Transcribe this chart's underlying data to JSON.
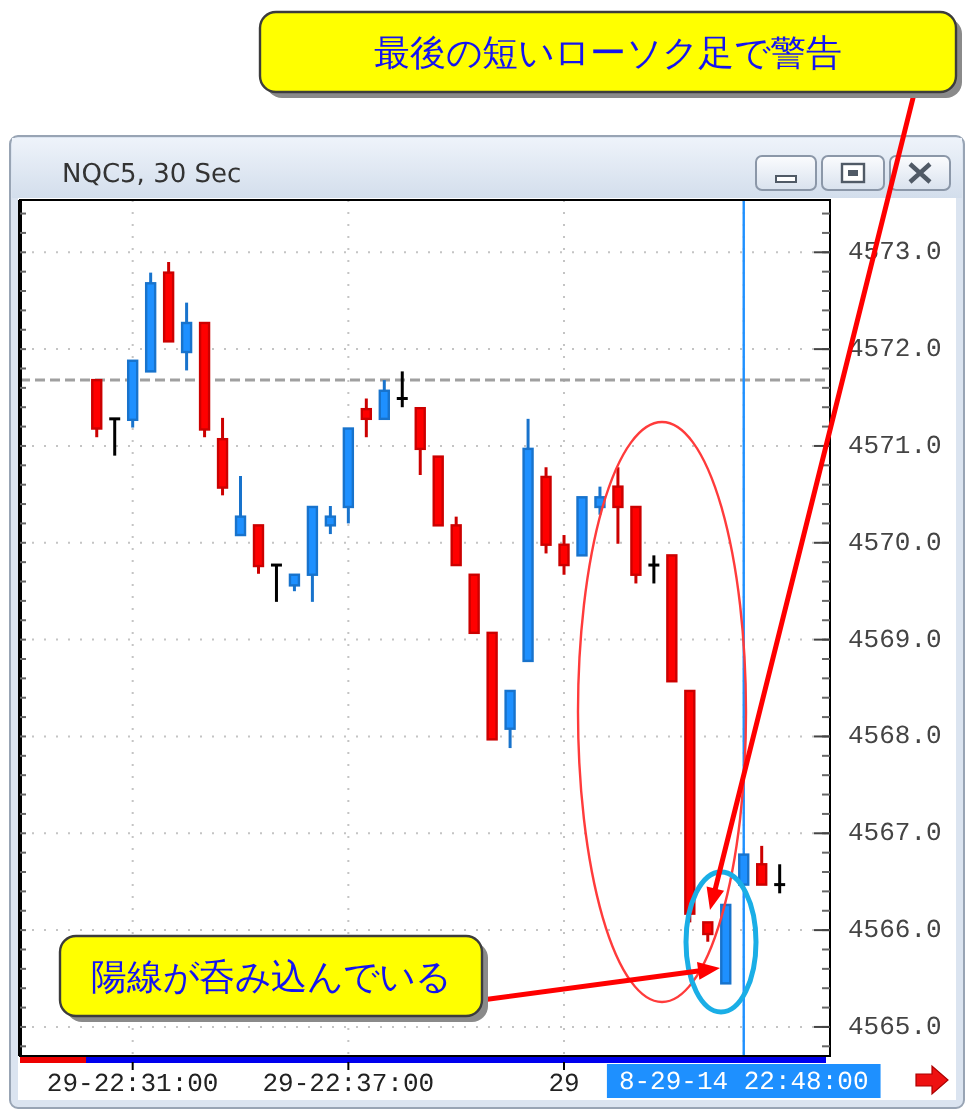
{
  "chart_data": {
    "type": "candlestick",
    "title": "NQC5, 30 Sec",
    "categories": [
      null,
      null,
      "29-22:31:00",
      null,
      null,
      null,
      null,
      null,
      null,
      null,
      null,
      null,
      null,
      null,
      "29-22:37:00",
      null,
      null,
      null,
      null,
      null,
      null,
      null,
      null,
      null,
      null,
      null,
      "29",
      null,
      null,
      null,
      null,
      null,
      null,
      null,
      null,
      null,
      "8-29-14 22:48:00",
      null,
      null
    ],
    "ohlc": [
      [
        4571.68,
        4571.68,
        4571.09,
        4571.18
      ],
      [
        4571.28,
        4571.28,
        4570.9,
        4571.28
      ],
      [
        4571.27,
        4571.88,
        4571.19,
        4571.88
      ],
      [
        4571.77,
        4572.79,
        4571.77,
        4572.68
      ],
      [
        4572.79,
        4572.9,
        4572.08,
        4572.08
      ],
      [
        4571.97,
        4572.48,
        4571.78,
        4572.27
      ],
      [
        4572.27,
        4572.27,
        4571.09,
        4571.17
      ],
      [
        4571.07,
        4571.29,
        4570.49,
        4570.57
      ],
      [
        4570.08,
        4570.69,
        4570.08,
        4570.27
      ],
      [
        4570.18,
        4570.18,
        4569.68,
        4569.76
      ],
      [
        4569.77,
        4569.77,
        4569.39,
        4569.77
      ],
      [
        4569.56,
        4569.67,
        4569.5,
        4569.67
      ],
      [
        4569.67,
        4570.37,
        4569.39,
        4570.37
      ],
      [
        4570.18,
        4570.38,
        4570.09,
        4570.27
      ],
      [
        4570.37,
        4571.18,
        4570.2,
        4571.18
      ],
      [
        4571.38,
        4571.49,
        4571.09,
        4571.28
      ],
      [
        4571.28,
        4571.68,
        4571.28,
        4571.57
      ],
      [
        4571.49,
        4571.77,
        4571.4,
        4571.49
      ],
      [
        4571.39,
        4571.39,
        4570.7,
        4570.97
      ],
      [
        4570.89,
        4570.89,
        4570.18,
        4570.18
      ],
      [
        4570.18,
        4570.27,
        4569.77,
        4569.77
      ],
      [
        4569.67,
        4569.67,
        4569.07,
        4569.07
      ],
      [
        4569.07,
        4569.07,
        4567.97,
        4567.97
      ],
      [
        4568.08,
        4568.47,
        4567.88,
        4568.47
      ],
      [
        4568.78,
        4571.28,
        4568.78,
        4570.97
      ],
      [
        4570.68,
        4570.78,
        4569.89,
        4569.98
      ],
      [
        4569.98,
        4570.08,
        4569.67,
        4569.77
      ],
      [
        4569.87,
        4570.47,
        4569.87,
        4570.47
      ],
      [
        4570.37,
        4570.58,
        4570.29,
        4570.47
      ],
      [
        4570.58,
        4570.78,
        4569.99,
        4570.37
      ],
      [
        4570.37,
        4570.37,
        4569.58,
        4569.67
      ],
      [
        4569.77,
        4569.87,
        4569.58,
        4569.77
      ],
      [
        4569.87,
        4569.87,
        4568.57,
        4568.57
      ],
      [
        4568.47,
        4568.47,
        4566.08,
        4566.17
      ],
      [
        4566.08,
        4566.08,
        4565.88,
        4565.96
      ],
      [
        4565.45,
        4566.26,
        4565.45,
        4566.26
      ],
      [
        4566.47,
        4566.78,
        4566.47,
        4566.78
      ],
      [
        4566.68,
        4566.87,
        4566.47,
        4566.47
      ],
      [
        4566.47,
        4566.68,
        4566.38,
        4566.47
      ]
    ],
    "colors": [
      "#ff0000",
      "#000000",
      "#1e90ff",
      "#1e90ff",
      "#ff0000",
      "#1e90ff",
      "#ff0000",
      "#ff0000",
      "#1e90ff",
      "#ff0000",
      "#000000",
      "#1e90ff",
      "#1e90ff",
      "#1e90ff",
      "#1e90ff",
      "#ff0000",
      "#1e90ff",
      "#000000",
      "#ff0000",
      "#ff0000",
      "#ff0000",
      "#ff0000",
      "#ff0000",
      "#1e90ff",
      "#1e90ff",
      "#ff0000",
      "#ff0000",
      "#1e90ff",
      "#1e90ff",
      "#ff0000",
      "#ff0000",
      "#000000",
      "#ff0000",
      "#ff0000",
      "#ff0000",
      "#1e90ff",
      "#1e90ff",
      "#ff0000",
      "#000000"
    ],
    "ylim": [
      4564.7,
      4573.54
    ],
    "yticks": [
      {
        "value": 4565,
        "label": "4565.0"
      },
      {
        "value": 4566,
        "label": "4566.0"
      },
      {
        "value": 4567,
        "label": "4567.0"
      },
      {
        "value": 4568,
        "label": "4568.0"
      },
      {
        "value": 4569,
        "label": "4569.0"
      },
      {
        "value": 4570,
        "label": "4570.0"
      },
      {
        "value": 4571,
        "label": "4571.0"
      },
      {
        "value": 4572,
        "label": "4572.0"
      },
      {
        "value": 4573,
        "label": "4573.0"
      }
    ],
    "grid": true,
    "ref_lines": [
      {
        "axis": "y",
        "value": 4571.68,
        "color": "#a0a0a0",
        "line_style": "dashed"
      },
      {
        "axis": "x",
        "value": "8-29-14 22:48:00",
        "color": "#1e90ff",
        "line_style": "solid"
      }
    ],
    "annotations": [
      "最後の短いローソク足で警告",
      "陽線が呑み込んでいる"
    ]
  }
}
